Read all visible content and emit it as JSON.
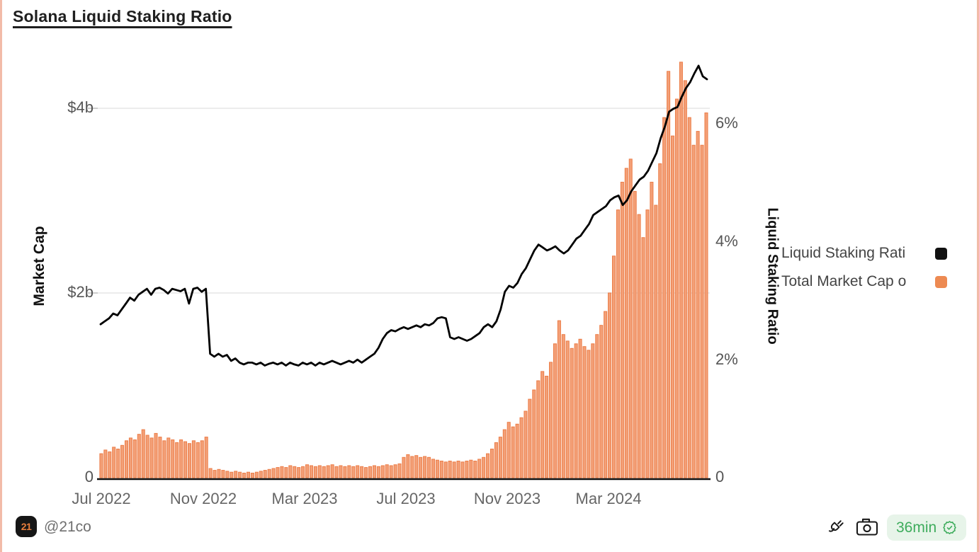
{
  "page": {
    "title": "Solana Liquid Staking Ratio"
  },
  "legend": {
    "items": [
      {
        "label": "Liquid Staking Rati",
        "color": "#111111"
      },
      {
        "label": "Total Market Cap o",
        "color": "#ED8A52"
      }
    ]
  },
  "footer": {
    "logo_text": "21",
    "handle": "@21co",
    "refresh_time": "36min",
    "icons": [
      "plug-icon",
      "camera-icon",
      "verified-seal-icon"
    ]
  },
  "colors": {
    "bar_fill": "#F3A078",
    "bar_edge": "#EC7C46",
    "line": "#000000",
    "grid": "#ECECEC",
    "page_edge": "#F2BBA8",
    "badge_green": "#3EAC5C",
    "badge_bg": "#E7F4E9",
    "logo_orange": "#E87E3C"
  },
  "chart_data": {
    "type": "bar+line combo",
    "title": "Solana Liquid Staking Ratio",
    "x_start": "Jul 2022",
    "x_end": "Jun 2024",
    "points_per_month": 6,
    "x_tick_labels": [
      "Jul 2022",
      "Nov 2022",
      "Mar 2023",
      "Jul 2023",
      "Nov 2023",
      "Mar 2024"
    ],
    "x_tick_point_index": [
      0,
      24,
      48,
      72,
      96,
      120
    ],
    "left_axis": {
      "label": "Market Cap",
      "unit": "USD billions",
      "ticks": [
        "$4b",
        "$2b",
        "0"
      ],
      "tick_values": [
        4,
        2,
        0
      ],
      "range": [
        0,
        4.53
      ]
    },
    "right_axis": {
      "label": "Liquid Staking Ratio",
      "unit": "percent",
      "ticks": [
        "6%",
        "4%",
        "2%",
        "0"
      ],
      "tick_values": [
        6,
        4,
        2,
        0
      ],
      "range": [
        0,
        7.07
      ]
    },
    "grid": "horizontal gridlines at $2b and $4b only",
    "legend_position": "right, outside plot",
    "series": [
      {
        "name": "Total Market Cap o",
        "type": "bar",
        "axis": "left",
        "fill": "#F3A078",
        "color": "#EC7C46",
        "values": [
          0.26,
          0.3,
          0.28,
          0.33,
          0.31,
          0.35,
          0.4,
          0.43,
          0.41,
          0.47,
          0.52,
          0.46,
          0.43,
          0.48,
          0.44,
          0.4,
          0.43,
          0.41,
          0.38,
          0.41,
          0.39,
          0.37,
          0.4,
          0.38,
          0.4,
          0.44,
          0.1,
          0.08,
          0.09,
          0.08,
          0.07,
          0.06,
          0.07,
          0.06,
          0.05,
          0.06,
          0.05,
          0.06,
          0.07,
          0.08,
          0.09,
          0.1,
          0.11,
          0.12,
          0.11,
          0.13,
          0.12,
          0.11,
          0.12,
          0.14,
          0.13,
          0.12,
          0.13,
          0.12,
          0.13,
          0.14,
          0.12,
          0.13,
          0.12,
          0.13,
          0.12,
          0.13,
          0.12,
          0.11,
          0.12,
          0.13,
          0.12,
          0.13,
          0.14,
          0.13,
          0.14,
          0.15,
          0.22,
          0.25,
          0.23,
          0.24,
          0.22,
          0.23,
          0.22,
          0.2,
          0.19,
          0.18,
          0.17,
          0.18,
          0.17,
          0.18,
          0.17,
          0.18,
          0.19,
          0.18,
          0.2,
          0.22,
          0.26,
          0.31,
          0.38,
          0.44,
          0.52,
          0.6,
          0.55,
          0.58,
          0.65,
          0.72,
          0.85,
          0.95,
          1.05,
          1.15,
          1.1,
          1.25,
          1.45,
          1.7,
          1.55,
          1.48,
          1.4,
          1.45,
          1.5,
          1.42,
          1.38,
          1.45,
          1.55,
          1.65,
          1.8,
          2.0,
          2.4,
          2.9,
          3.2,
          3.35,
          3.45,
          3.1,
          2.85,
          2.6,
          2.9,
          3.2,
          2.95,
          3.4,
          3.9,
          4.4,
          3.7,
          4.1,
          4.5,
          4.3,
          3.9,
          3.6,
          3.75,
          3.6,
          3.95
        ]
      },
      {
        "name": "Liquid Staking Rati",
        "type": "line",
        "axis": "right",
        "color": "#000000",
        "values": [
          2.6,
          2.65,
          2.7,
          2.78,
          2.75,
          2.85,
          2.95,
          3.05,
          3.0,
          3.1,
          3.15,
          3.2,
          3.1,
          3.2,
          3.22,
          3.18,
          3.12,
          3.2,
          3.18,
          3.16,
          3.2,
          2.95,
          3.2,
          3.22,
          3.15,
          3.2,
          2.1,
          2.05,
          2.1,
          2.05,
          2.08,
          1.98,
          2.02,
          1.95,
          1.92,
          1.95,
          1.95,
          1.92,
          1.95,
          1.9,
          1.93,
          1.95,
          1.92,
          1.95,
          1.9,
          1.95,
          1.92,
          1.9,
          1.95,
          1.92,
          1.95,
          1.9,
          1.95,
          1.92,
          1.95,
          1.98,
          1.95,
          1.92,
          1.95,
          1.98,
          1.95,
          2.0,
          1.95,
          2.0,
          2.05,
          2.1,
          2.2,
          2.35,
          2.45,
          2.5,
          2.48,
          2.52,
          2.55,
          2.52,
          2.55,
          2.58,
          2.55,
          2.6,
          2.58,
          2.62,
          2.7,
          2.72,
          2.7,
          2.38,
          2.35,
          2.38,
          2.35,
          2.32,
          2.35,
          2.4,
          2.45,
          2.55,
          2.6,
          2.55,
          2.65,
          2.85,
          3.15,
          3.25,
          3.22,
          3.3,
          3.45,
          3.55,
          3.7,
          3.85,
          3.95,
          3.9,
          3.85,
          3.88,
          3.92,
          3.85,
          3.8,
          3.85,
          3.95,
          4.05,
          4.1,
          4.2,
          4.3,
          4.45,
          4.5,
          4.55,
          4.6,
          4.7,
          4.75,
          4.78,
          4.62,
          4.7,
          4.85,
          4.95,
          5.05,
          5.1,
          5.2,
          5.35,
          5.5,
          5.75,
          5.95,
          6.2,
          6.25,
          6.28,
          6.45,
          6.6,
          6.7,
          6.85,
          6.98,
          6.8,
          6.75
        ]
      }
    ]
  }
}
